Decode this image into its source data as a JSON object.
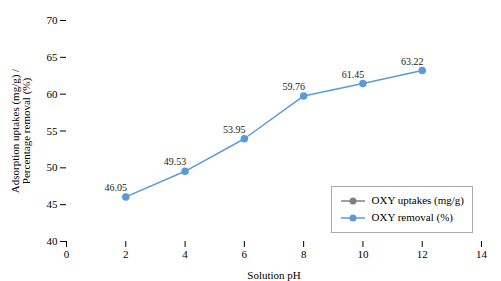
{
  "chart_data": {
    "type": "line",
    "xlabel": "Solution pH",
    "ylabel": "Adsorption uptakes (mg/g) /\nPercentage removal (%)",
    "x": [
      2,
      4,
      6,
      8,
      10,
      12
    ],
    "series": [
      {
        "name": "OXY uptakes (mg/g)",
        "color": "#808080",
        "marker": "o",
        "values": [
          null,
          null,
          null,
          null,
          null,
          null
        ]
      },
      {
        "name": "OXY removal (%)",
        "color": "#5b9bd5",
        "marker": "o",
        "data_labels": true,
        "values": [
          46.05,
          49.53,
          53.95,
          59.76,
          61.45,
          63.22
        ]
      }
    ],
    "xlim": [
      0,
      14
    ],
    "ylim": [
      40,
      70
    ],
    "xticks": [
      0,
      2,
      4,
      6,
      8,
      10,
      12,
      14
    ],
    "yticks": [
      40,
      45,
      50,
      55,
      60,
      65,
      70
    ],
    "grid": false,
    "legend": "lower right"
  }
}
